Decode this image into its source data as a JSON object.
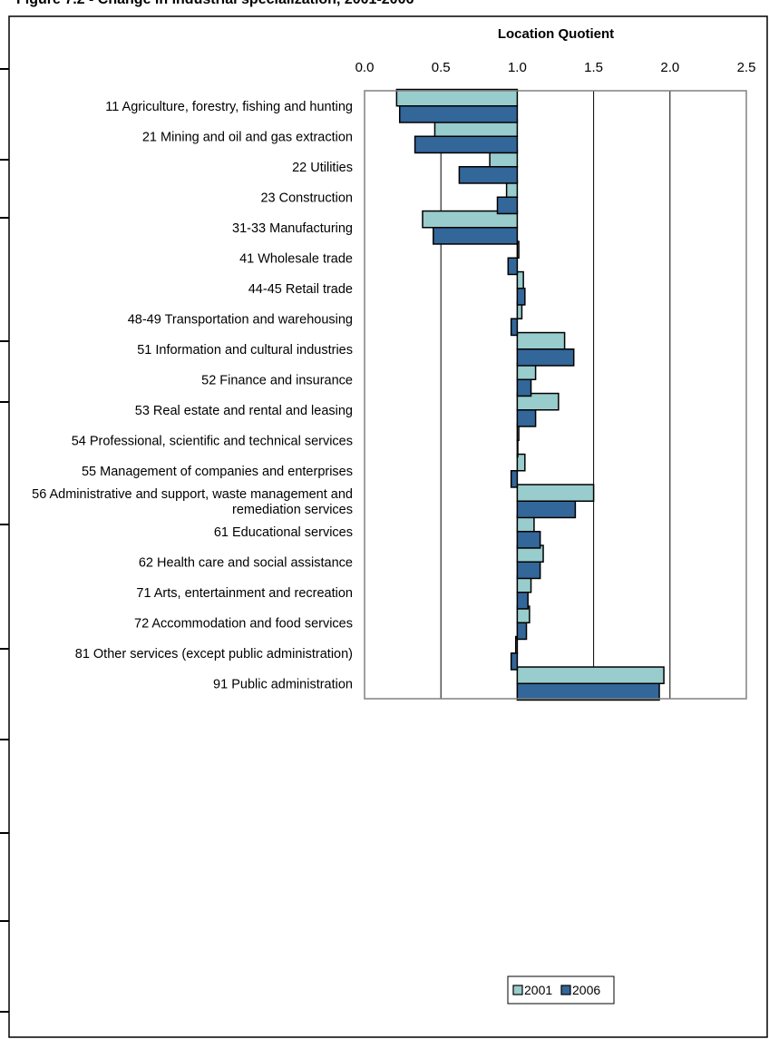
{
  "page": {
    "figure_title": "Figure 7.2 - Change in industrial specialization, 2001-2006"
  },
  "chart_data": {
    "type": "bar",
    "orientation": "horizontal",
    "xlabel": "Location Quotient",
    "x_axis_position": "top",
    "xlim": [
      0.0,
      2.5
    ],
    "xticks": [
      "0.0",
      "0.5",
      "1.0",
      "1.5",
      "2.0",
      "2.5"
    ],
    "baseline": 1.0,
    "gridlines": "vertical",
    "legend_position": "bottom-center",
    "categories": [
      [
        "11 Agriculture, forestry, fishing and hunting"
      ],
      [
        "21 Mining and oil and gas extraction"
      ],
      [
        "22 Utilities"
      ],
      [
        "23 Construction"
      ],
      [
        "31-33 Manufacturing"
      ],
      [
        "41 Wholesale trade"
      ],
      [
        "44-45 Retail trade"
      ],
      [
        "48-49 Transportation and warehousing"
      ],
      [
        "51 Information and cultural industries"
      ],
      [
        "52 Finance and insurance"
      ],
      [
        "53 Real estate and rental and leasing"
      ],
      [
        "54 Professional, scientific and technical services"
      ],
      [
        "55 Management of companies and enterprises"
      ],
      [
        "56 Administrative and support, waste management and",
        "remediation services"
      ],
      [
        "61 Educational services"
      ],
      [
        "62 Health care and social assistance"
      ],
      [
        "71 Arts, entertainment and recreation"
      ],
      [
        "72 Accommodation and food services"
      ],
      [
        "81 Other services (except public administration)"
      ],
      [
        "91 Public administration"
      ]
    ],
    "series": [
      {
        "name": "2001",
        "color": "#99CCCC",
        "values": [
          0.21,
          0.46,
          0.82,
          0.93,
          0.38,
          1.01,
          1.04,
          1.03,
          1.31,
          1.12,
          1.27,
          1.01,
          1.05,
          1.5,
          1.11,
          1.17,
          1.09,
          1.08,
          0.99,
          1.96
        ]
      },
      {
        "name": "2006",
        "color": "#336699",
        "values": [
          0.23,
          0.33,
          0.62,
          0.87,
          0.45,
          0.94,
          1.05,
          0.96,
          1.37,
          1.09,
          1.12,
          1.0,
          0.96,
          1.38,
          1.15,
          1.15,
          1.07,
          1.06,
          0.96,
          1.93
        ]
      }
    ]
  }
}
